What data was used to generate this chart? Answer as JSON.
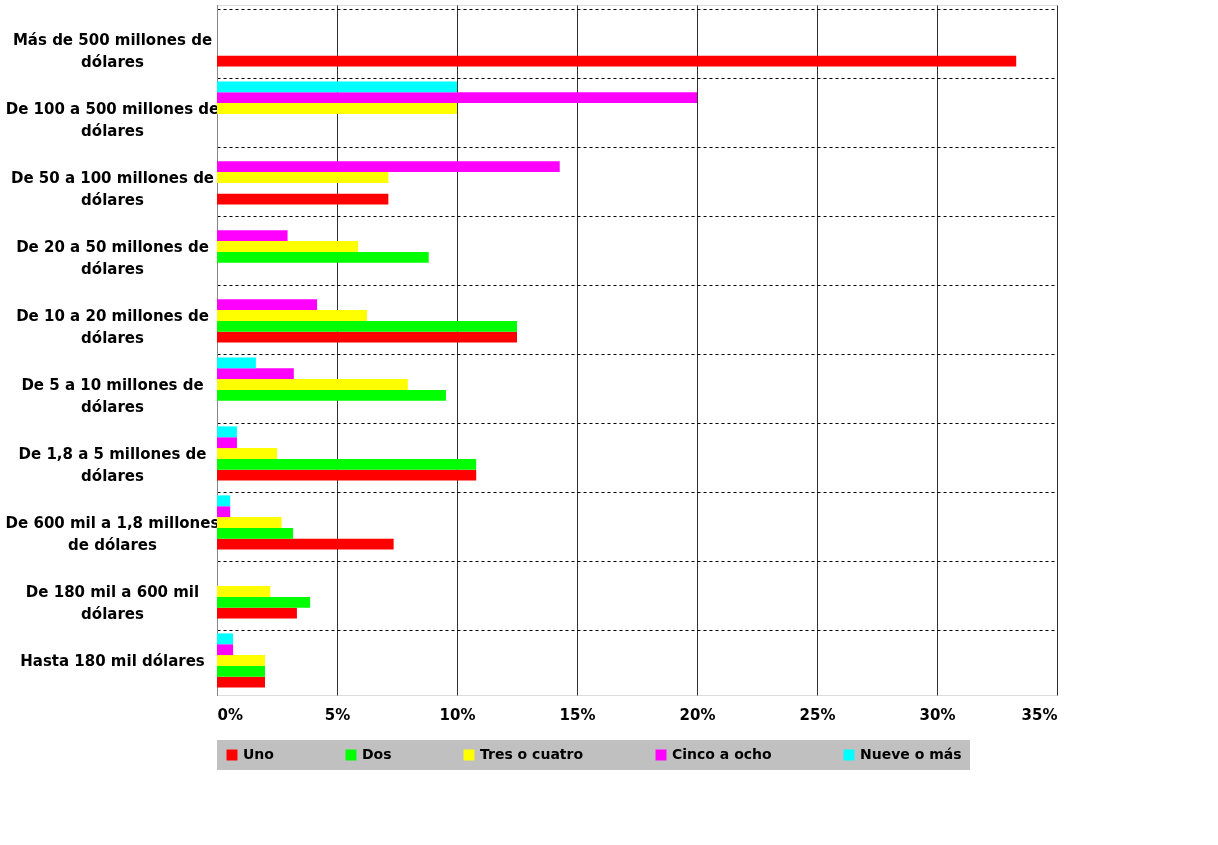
{
  "chart_data": {
    "type": "bar",
    "orientation": "horizontal",
    "categories": [
      "Más de 500 millones de dólares",
      "De 100 a 500 millones de dólares",
      "De 50 a 100 millones de dólares",
      "De 20 a 50 millones de dólares",
      "De 10 a 20 millones de dólares",
      "De 5 a 10 millones de dólares",
      "De 1,8 a 5 millones de dólares",
      "De 600 mil a 1,8 millones de dólares",
      "De 180 mil a 600 mil dólares",
      "Hasta 180 mil dólares"
    ],
    "series": [
      {
        "name": "Uno",
        "color": "#ff0000",
        "values": [
          33.3,
          null,
          7.14,
          null,
          12.5,
          null,
          10.8,
          7.36,
          3.33,
          2.0
        ]
      },
      {
        "name": "Dos",
        "color": "#00ff00",
        "values": [
          null,
          null,
          null,
          8.82,
          12.5,
          9.54,
          10.8,
          3.17,
          3.88,
          2.0
        ]
      },
      {
        "name": "Tres o cuatro",
        "color": "#ffff00",
        "values": [
          null,
          10.0,
          7.14,
          5.88,
          6.25,
          7.95,
          2.5,
          2.69,
          2.22,
          2.0
        ]
      },
      {
        "name": "Cinco a ocho",
        "color": "#ff00ff",
        "values": [
          null,
          20.0,
          14.28,
          2.94,
          4.17,
          3.2,
          0.83,
          0.55,
          null,
          0.67
        ]
      },
      {
        "name": "Nueve o más",
        "color": "#00ffff",
        "values": [
          null,
          10.0,
          null,
          null,
          null,
          1.62,
          0.83,
          0.55,
          null,
          0.67
        ]
      }
    ],
    "xlim": [
      0,
      35
    ],
    "xticks": [
      {
        "value": 0,
        "label": "0%"
      },
      {
        "value": 5,
        "label": "5%"
      },
      {
        "value": 10,
        "label": "10%"
      },
      {
        "value": 15,
        "label": "15%"
      },
      {
        "value": 20,
        "label": "20%"
      },
      {
        "value": 25,
        "label": "25%"
      },
      {
        "value": 30,
        "label": "30%"
      },
      {
        "value": 35,
        "label": "35%"
      }
    ],
    "grid": true,
    "legend": "bottom"
  }
}
